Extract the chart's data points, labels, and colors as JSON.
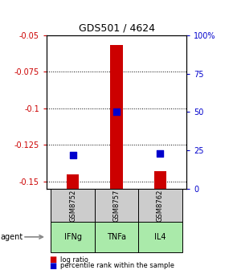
{
  "title": "GDS501 / 4624",
  "samples": [
    "GSM8752",
    "GSM8757",
    "GSM8762"
  ],
  "agents": [
    "IFNg",
    "TNFa",
    "IL4"
  ],
  "log_ratios": [
    -0.145,
    -0.057,
    -0.143
  ],
  "percentile_ranks": [
    22,
    50,
    23
  ],
  "ylim_left": [
    -0.155,
    -0.05
  ],
  "ylim_right": [
    0,
    100
  ],
  "left_ticks": [
    -0.05,
    -0.075,
    -0.1,
    -0.125,
    -0.15
  ],
  "right_ticks": [
    100,
    75,
    50,
    25,
    0
  ],
  "bar_color": "#cc0000",
  "dot_color": "#0000cc",
  "sample_bg": "#cccccc",
  "agent_bg": "#aaeaaa",
  "left_tick_color": "#cc0000",
  "right_tick_color": "#0000cc",
  "bar_width": 0.28,
  "dot_size": 28,
  "grid_linestyle": "dotted"
}
